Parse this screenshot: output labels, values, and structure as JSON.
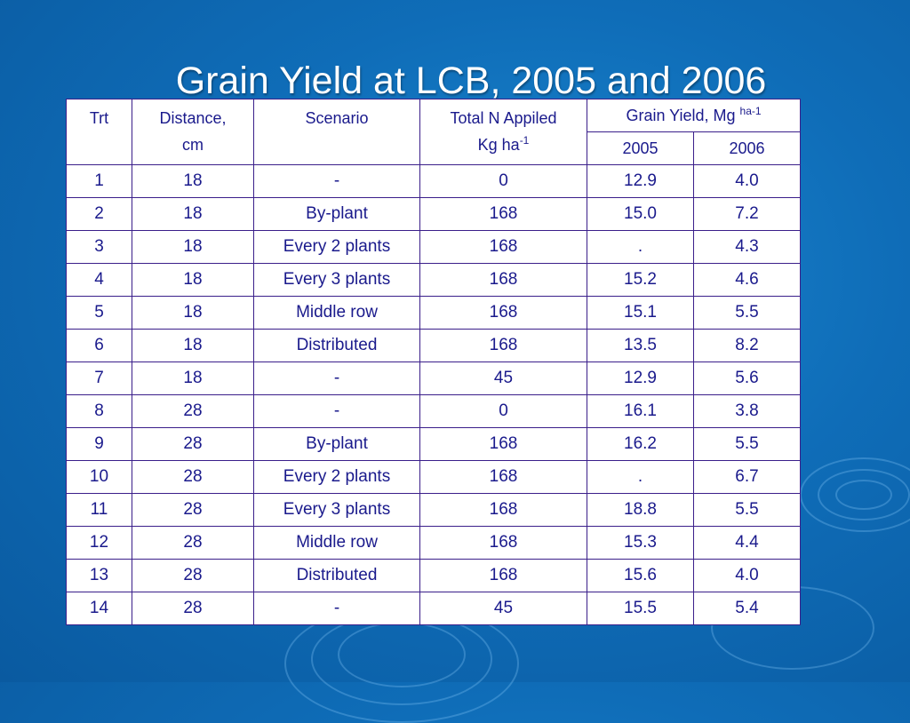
{
  "title": "Grain Yield at LCB, 2005 and 2006",
  "header": {
    "trt": "Trt",
    "distance_line1": "Distance,",
    "distance_line2": "cm",
    "scenario": "Scenario",
    "totaln_line1": "Total N Appiled",
    "totaln_line2": "Kg ha",
    "totaln_sup": "-1",
    "yield": "Grain Yield, Mg ",
    "yield_sup": "ha-1",
    "y2005": "2005",
    "y2006": "2006"
  },
  "rows": [
    {
      "trt": "1",
      "distance": "18",
      "scenario": "-",
      "n": "0",
      "y2005": "12.9",
      "y2006": "4.0"
    },
    {
      "trt": "2",
      "distance": "18",
      "scenario": "By-plant",
      "n": "168",
      "y2005": "15.0",
      "y2006": "7.2"
    },
    {
      "trt": "3",
      "distance": "18",
      "scenario": "Every 2 plants",
      "n": "168",
      "y2005": ".",
      "y2006": "4.3"
    },
    {
      "trt": "4",
      "distance": "18",
      "scenario": "Every 3 plants",
      "n": "168",
      "y2005": "15.2",
      "y2006": "4.6"
    },
    {
      "trt": "5",
      "distance": "18",
      "scenario": "Middle row",
      "n": "168",
      "y2005": "15.1",
      "y2006": "5.5"
    },
    {
      "trt": "6",
      "distance": "18",
      "scenario": "Distributed",
      "n": "168",
      "y2005": "13.5",
      "y2006": "8.2"
    },
    {
      "trt": "7",
      "distance": "18",
      "scenario": "-",
      "n": "45",
      "y2005": "12.9",
      "y2006": "5.6"
    },
    {
      "trt": "8",
      "distance": "28",
      "scenario": "-",
      "n": "0",
      "y2005": "16.1",
      "y2006": "3.8"
    },
    {
      "trt": "9",
      "distance": "28",
      "scenario": "By-plant",
      "n": "168",
      "y2005": "16.2",
      "y2006": "5.5"
    },
    {
      "trt": "10",
      "distance": "28",
      "scenario": "Every 2 plants",
      "n": "168",
      "y2005": ".",
      "y2006": "6.7"
    },
    {
      "trt": "11",
      "distance": "28",
      "scenario": "Every 3 plants",
      "n": "168",
      "y2005": "18.8",
      "y2006": "5.5"
    },
    {
      "trt": "12",
      "distance": "28",
      "scenario": "Middle row",
      "n": "168",
      "y2005": "15.3",
      "y2006": "4.4"
    },
    {
      "trt": "13",
      "distance": "28",
      "scenario": "Distributed",
      "n": "168",
      "y2005": "15.6",
      "y2006": "4.0"
    },
    {
      "trt": "14",
      "distance": "28",
      "scenario": "-",
      "n": "45",
      "y2005": "15.5",
      "y2006": "5.4"
    }
  ]
}
